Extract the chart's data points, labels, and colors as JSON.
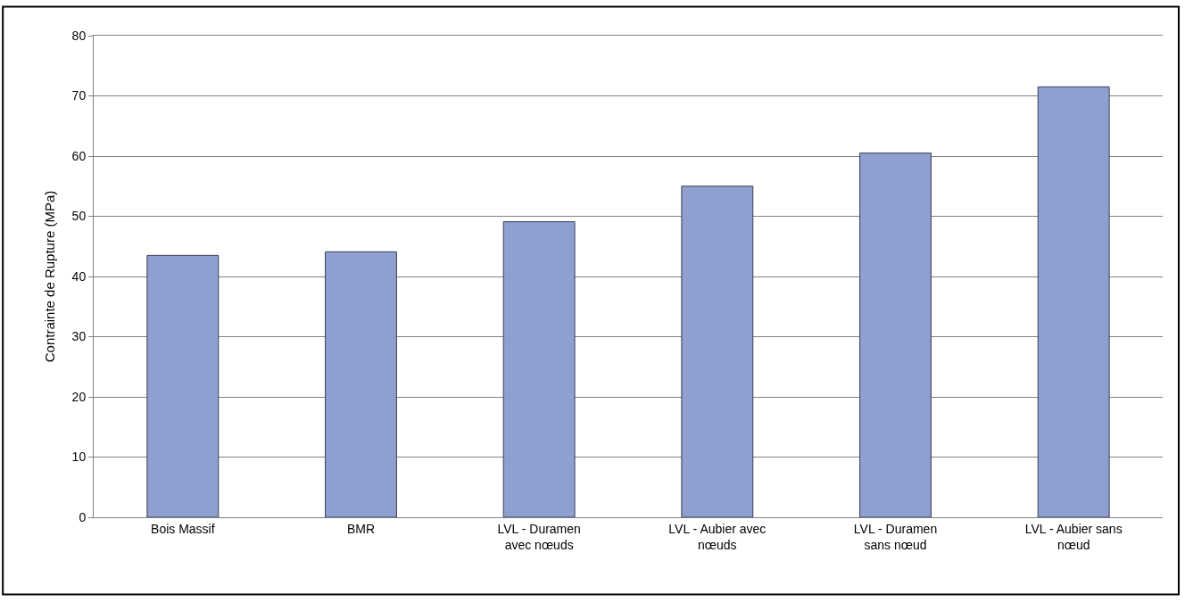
{
  "chart_data": {
    "type": "bar",
    "ylabel": "Contrainte de Rupture (MPa)",
    "categories": [
      "Bois Massif",
      "BMR",
      "LVL - Duramen\navec nœuds",
      "LVL - Aubier avec\nnœuds",
      "LVL - Duramen\nsans nœud",
      "LVL - Aubier sans\nnœud"
    ],
    "values": [
      43.5,
      44.1,
      49.1,
      55.0,
      60.5,
      71.5
    ],
    "color": "#8e9fd0",
    "ylim": [
      0,
      80
    ],
    "yticks": [
      0,
      10,
      20,
      30,
      40,
      50,
      60,
      70,
      80
    ],
    "grid": "y"
  }
}
